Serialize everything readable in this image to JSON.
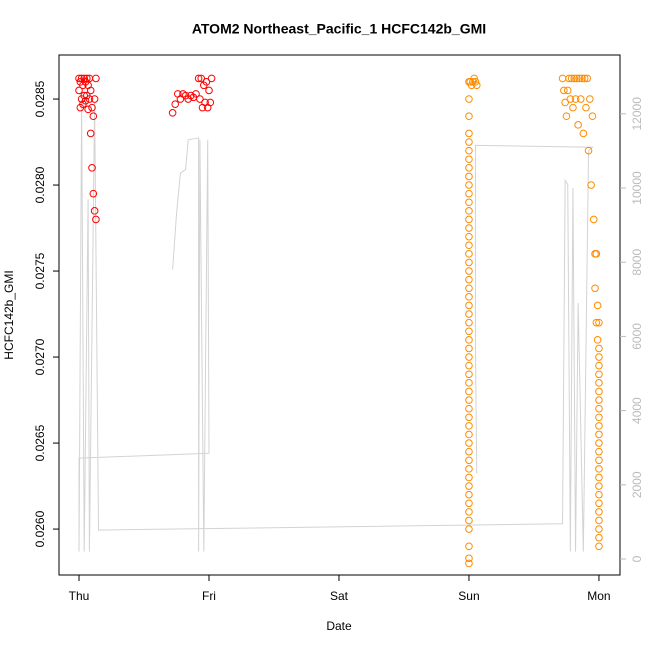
{
  "chart_data": {
    "type": "scatter",
    "title": "ATOM2 Northeast_Pacific_1 HCFC142b_GMI",
    "x_label": "Date",
    "y_label": "HCFC142b_GMI",
    "xlim": [
      -0.154,
      4.162
    ],
    "ylim": [
      0.025733,
      0.028756
    ],
    "y2lim": [
      -431,
      13585
    ],
    "xticks": [
      {
        "value": 0,
        "label": "Thu"
      },
      {
        "value": 1,
        "label": "Fri"
      },
      {
        "value": 2,
        "label": "Sat"
      },
      {
        "value": 3,
        "label": "Sun"
      },
      {
        "value": 4,
        "label": "Mon"
      }
    ],
    "yticks": [
      {
        "value": 0.026,
        "label": "0.0260"
      },
      0.0265,
      {
        "value": 0.027,
        "label": "0.0270"
      },
      0.0275,
      {
        "value": 0.028,
        "label": "0.0280"
      },
      0.0285
    ],
    "y2ticks": [
      0,
      2000,
      4000,
      6000,
      8000,
      10000,
      12000
    ],
    "series": [
      {
        "color": "#ff0000",
        "x": [
          0.0,
          0.0,
          0.01,
          0.01,
          0.02,
          0.02,
          0.03,
          0.03,
          0.04,
          0.04,
          0.05,
          0.05,
          0.06,
          0.06,
          0.07,
          0.07,
          0.08,
          0.08,
          0.09,
          0.09,
          0.1,
          0.1,
          0.11,
          0.11,
          0.12,
          0.12,
          0.13,
          0.13,
          0.72,
          0.74,
          0.76,
          0.78,
          0.8,
          0.82,
          0.84,
          0.86,
          0.88,
          0.9,
          0.92,
          0.93,
          0.94,
          0.95,
          0.96,
          0.97,
          0.98,
          0.99,
          1.0,
          1.01,
          1.02
        ],
        "values": [
          0.02855,
          0.02862,
          0.02845,
          0.0286,
          0.0285,
          0.02862,
          0.02847,
          0.02858,
          0.02852,
          0.02862,
          0.02849,
          0.0286,
          0.02852,
          0.02862,
          0.02844,
          0.02858,
          0.0285,
          0.02862,
          0.0283,
          0.02855,
          0.0281,
          0.02845,
          0.02795,
          0.0284,
          0.02785,
          0.0285,
          0.0278,
          0.02862,
          0.02842,
          0.02847,
          0.02853,
          0.0285,
          0.02853,
          0.02852,
          0.0285,
          0.02852,
          0.02851,
          0.02853,
          0.02862,
          0.0285,
          0.02862,
          0.02845,
          0.02858,
          0.02848,
          0.0286,
          0.02845,
          0.02855,
          0.02848,
          0.02862
        ]
      },
      {
        "color": "#ff8c00",
        "x": [
          3,
          3,
          3,
          3,
          3,
          3,
          3,
          3,
          3,
          3,
          3,
          3,
          3,
          3,
          3,
          3,
          3,
          3,
          3,
          3,
          3,
          3,
          3,
          3,
          3,
          3,
          3,
          3,
          3,
          3,
          3,
          3,
          3,
          3,
          3,
          3,
          3,
          3,
          3,
          3,
          3,
          3,
          3,
          3,
          3,
          3,
          3,
          3,
          3,
          3,
          3,
          3,
          3,
          3.01,
          3.02,
          3.03,
          3.04,
          3.05,
          3.06,
          3.72,
          3.73,
          3.74,
          3.75,
          3.76,
          3.77,
          3.78,
          3.79,
          3.8,
          3.81,
          3.82,
          3.83,
          3.84,
          3.85,
          3.86,
          3.87,
          3.88,
          3.89,
          3.9,
          3.91,
          3.92,
          3.93,
          3.94,
          3.95,
          3.96,
          3.97,
          3.97,
          3.98,
          3.98,
          3.99,
          3.99,
          4,
          4,
          4,
          4,
          4,
          4,
          4,
          4,
          4,
          4,
          4,
          4,
          4,
          4,
          4,
          4,
          4,
          4,
          4,
          4,
          4,
          4,
          4,
          4,
          4
        ],
        "values": [
          0.0258,
          0.02583,
          0.0259,
          0.026,
          0.02605,
          0.0261,
          0.02615,
          0.0262,
          0.02625,
          0.0263,
          0.02635,
          0.0264,
          0.02645,
          0.0265,
          0.02655,
          0.0266,
          0.02665,
          0.0267,
          0.02675,
          0.0268,
          0.02685,
          0.0269,
          0.02695,
          0.027,
          0.02705,
          0.0271,
          0.02715,
          0.0272,
          0.02725,
          0.0273,
          0.02735,
          0.0274,
          0.02745,
          0.0275,
          0.02755,
          0.0276,
          0.02765,
          0.0277,
          0.02775,
          0.0278,
          0.02785,
          0.0279,
          0.02795,
          0.028,
          0.02805,
          0.0281,
          0.02815,
          0.0282,
          0.02825,
          0.0283,
          0.0284,
          0.0285,
          0.0286,
          0.0286,
          0.02858,
          0.0286,
          0.02862,
          0.0286,
          0.02858,
          0.02862,
          0.02855,
          0.02848,
          0.0284,
          0.02855,
          0.02862,
          0.0285,
          0.02862,
          0.02845,
          0.02862,
          0.0285,
          0.02862,
          0.02835,
          0.02862,
          0.0285,
          0.02862,
          0.0283,
          0.02862,
          0.02845,
          0.02862,
          0.0282,
          0.0285,
          0.028,
          0.0284,
          0.0278,
          0.0276,
          0.0274,
          0.0276,
          0.0272,
          0.0273,
          0.0271,
          0.0272,
          0.02705,
          0.027,
          0.02695,
          0.0269,
          0.02685,
          0.0268,
          0.02675,
          0.0267,
          0.02665,
          0.0266,
          0.02655,
          0.0265,
          0.02645,
          0.0264,
          0.02635,
          0.0263,
          0.02625,
          0.0262,
          0.02615,
          0.0261,
          0.02605,
          0.026,
          0.02595,
          0.0259
        ]
      },
      {
        "color": "#d3d3d3",
        "axis": "y2",
        "kind": "line",
        "x": [
          0.72,
          0.75,
          0.78,
          0.82,
          0.84,
          0.92,
          0.92,
          0.93,
          0.96,
          0.99,
          1.0,
          0.0,
          0.0,
          0.02,
          0.04,
          0.07,
          0.08,
          0.12,
          0.15,
          3.72,
          3.74,
          3.76,
          3.78,
          3.8,
          3.82,
          3.84,
          3.88,
          3.92,
          3.95,
          3.05,
          3.05,
          3.06
        ],
        "values": [
          7800,
          9300,
          10400,
          10500,
          11300,
          11350,
          200,
          11300,
          200,
          11300,
          2850,
          2720,
          200,
          12300,
          200,
          9700,
          200,
          12300,
          780,
          950,
          10200,
          10100,
          200,
          10000,
          200,
          6900,
          200,
          11000,
          11100,
          11150,
          5700,
          2300
        ]
      }
    ]
  }
}
